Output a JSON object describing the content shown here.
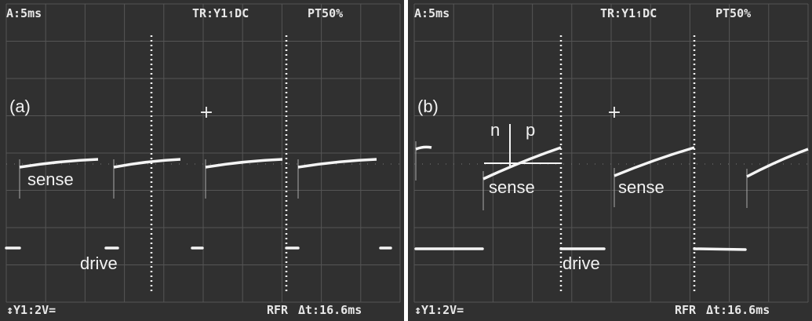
{
  "panels": [
    {
      "timebase": "A:5ms",
      "trigger": "TR:Y1↿DC",
      "pretrigger": "PT50%",
      "label": "(a)",
      "scale": "↕Y1:2V=",
      "mode": "RFR",
      "delta": "Δt:16.6ms",
      "annotations": [
        "sense",
        "drive"
      ]
    },
    {
      "timebase": "A:5ms",
      "trigger": "TR:Y1↿DC",
      "pretrigger": "PT50%",
      "label": "(b)",
      "scale": "↕Y1:2V=",
      "mode": "RFR",
      "delta": "Δt:16.6ms",
      "annotations": [
        "n",
        "p",
        "sense",
        "sense",
        "drive"
      ]
    }
  ]
}
